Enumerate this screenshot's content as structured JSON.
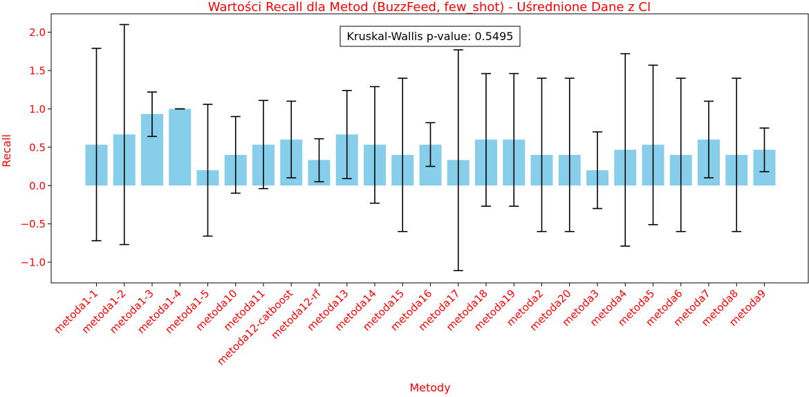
{
  "chart_data": {
    "type": "bar",
    "title": "Wartości Recall dla Metod (BuzzFeed, few_shot) - Uśrednione Dane z CI",
    "xlabel": "Metody",
    "ylabel": "Recall",
    "annotation": "Kruskal-Wallis p-value: 0.5495",
    "ylim": [
      -1.27,
      2.24
    ],
    "yticks": [
      -1.0,
      -0.5,
      0.0,
      0.5,
      1.0,
      1.5,
      2.0
    ],
    "ytick_labels": [
      "−1.0",
      "−0.5",
      "0.0",
      "0.5",
      "1.0",
      "1.5",
      "2.0"
    ],
    "categories": [
      "metoda1-1",
      "metoda1-2",
      "metoda1-3",
      "metoda1-4",
      "metoda1-5",
      "metoda10",
      "metoda11",
      "metoda12-catboost",
      "metoda12-rf",
      "metoda13",
      "metoda14",
      "metoda15",
      "metoda16",
      "metoda17",
      "metoda18",
      "metoda19",
      "metoda2",
      "metoda20",
      "metoda3",
      "metoda4",
      "metoda5",
      "metoda6",
      "metoda7",
      "metoda8",
      "metoda9"
    ],
    "values": [
      0.533,
      0.667,
      0.933,
      1.0,
      0.2,
      0.4,
      0.533,
      0.6,
      0.333,
      0.667,
      0.533,
      0.4,
      0.533,
      0.333,
      0.6,
      0.6,
      0.4,
      0.4,
      0.2,
      0.467,
      0.533,
      0.4,
      0.6,
      0.4,
      0.467
    ],
    "ci_lower": [
      -0.72,
      -0.77,
      0.64,
      1.0,
      -0.66,
      -0.1,
      -0.04,
      0.1,
      0.05,
      0.09,
      -0.23,
      -0.6,
      0.25,
      -1.11,
      -0.27,
      -0.27,
      -0.6,
      -0.6,
      -0.3,
      -0.79,
      -0.51,
      -0.6,
      0.1,
      -0.6,
      0.18
    ],
    "ci_upper": [
      1.79,
      2.1,
      1.22,
      1.0,
      1.06,
      0.9,
      1.11,
      1.1,
      0.61,
      1.24,
      1.29,
      1.4,
      0.82,
      1.77,
      1.46,
      1.46,
      1.4,
      1.4,
      0.7,
      1.72,
      1.57,
      1.4,
      1.1,
      1.4,
      0.75
    ],
    "colors": {
      "bar": "#87ceeb",
      "errorbar": "#000000",
      "text": "#ff0000",
      "axis": "#000000"
    },
    "grid": false,
    "legend": "none"
  }
}
